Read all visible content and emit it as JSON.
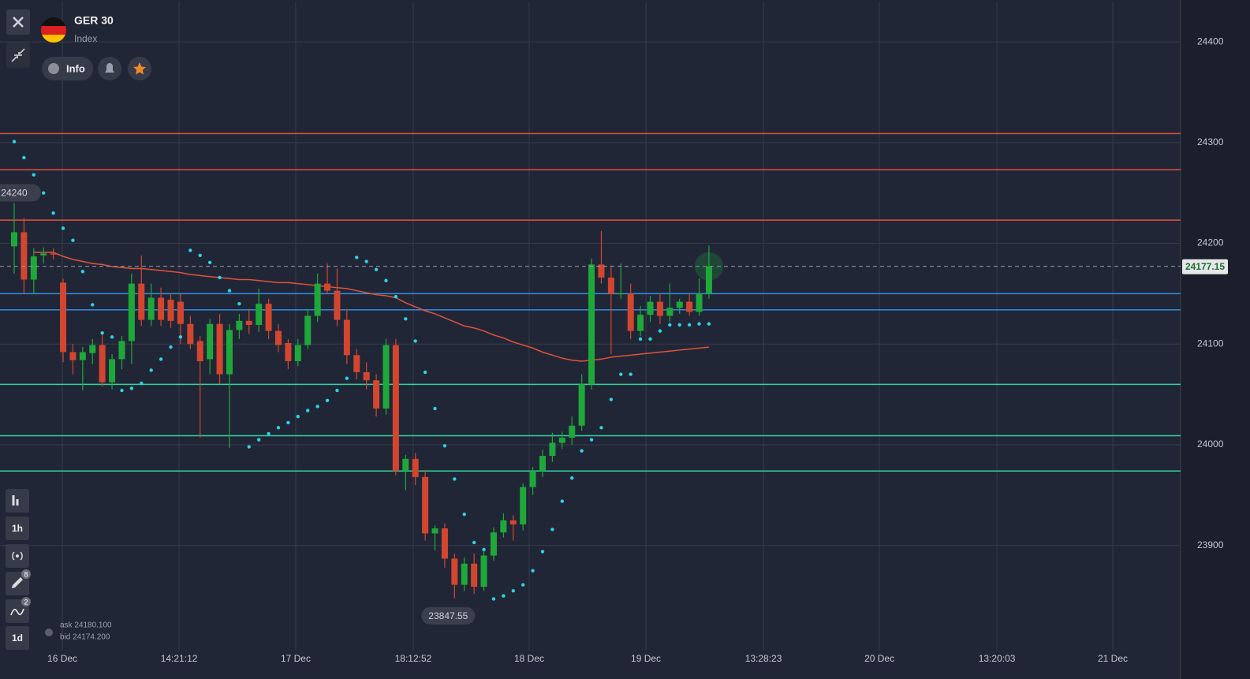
{
  "ui": {
    "symbol": "GER 30",
    "kind": "Index",
    "info": "Info",
    "tools": [
      "1h",
      "1d"
    ],
    "badges": [
      "8",
      "2"
    ],
    "ask": "ask 24180.100",
    "bid": "bid 24174.200"
  },
  "chart_data": {
    "type": "candlestick",
    "categories": [
      null,
      null,
      null,
      null,
      null,
      null,
      null,
      null,
      null,
      null,
      null,
      null,
      null,
      null,
      null,
      null,
      null,
      null,
      null,
      null,
      null,
      null,
      null,
      null,
      null,
      null,
      null,
      null,
      null,
      null,
      null,
      null,
      null,
      null,
      null,
      null,
      null,
      null,
      null,
      null,
      null,
      null,
      null,
      null,
      null,
      null,
      null,
      null,
      null,
      null,
      null,
      null,
      null,
      null,
      null,
      null,
      null,
      null,
      null,
      null,
      null,
      null,
      null,
      null,
      null,
      null,
      null,
      null,
      null,
      null,
      null,
      null
    ],
    "open": [
      24197,
      24211,
      24164,
      24188,
      24190,
      24161,
      24092,
      24084,
      24091,
      24099,
      24062,
      24085,
      24103,
      24160,
      24124,
      24146,
      24144,
      24142,
      24120,
      24103,
      24085,
      24120,
      24070,
      24114,
      24123,
      24119,
      24140,
      24113,
      24101,
      24083,
      24099,
      24128,
      24160,
      24153,
      24124,
      24089,
      24072,
      24064,
      24036,
      24099,
      23974,
      23986,
      23968,
      23912,
      23917,
      23887,
      23861,
      23882,
      23859,
      23890,
      23913,
      23925,
      23921,
      23958,
      23974,
      23989,
      24002,
      24007,
      24019,
      24060,
      24179,
      24166,
      24150,
      24150,
      24113,
      24129,
      24142,
      24128,
      24136,
      24142,
      24132,
      24150
    ],
    "high": [
      24240,
      24225,
      24195,
      24196,
      24195,
      24165,
      24100,
      24097,
      24105,
      24110,
      24090,
      24108,
      24170,
      24188,
      24160,
      24156,
      24150,
      24150,
      24128,
      24108,
      24125,
      24130,
      24120,
      24130,
      24135,
      24155,
      24145,
      24120,
      24105,
      24105,
      24135,
      24170,
      24180,
      24175,
      24135,
      24095,
      24082,
      24070,
      24105,
      24105,
      23990,
      23992,
      23975,
      23920,
      23922,
      23892,
      23888,
      23892,
      23895,
      23918,
      23932,
      23930,
      23962,
      23978,
      23995,
      24012,
      24013,
      24028,
      24070,
      24185,
      24212.25,
      24178,
      24180,
      24160,
      24138,
      24148,
      24150,
      24160,
      24145,
      24150,
      24165,
      24198
    ],
    "low": [
      24170,
      24150,
      24150,
      24180,
      24184,
      24082,
      24070,
      24054,
      24080,
      24058,
      24055,
      24075,
      24080,
      24118,
      24118,
      24118,
      24116,
      24100,
      24095,
      24007,
      24070,
      24060,
      23997,
      24105,
      24110,
      24112,
      24105,
      24092,
      24075,
      24078,
      24095,
      24122,
      24150,
      24118,
      24080,
      24065,
      24055,
      24028,
      24030,
      23970,
      23955,
      23960,
      23905,
      23895,
      23878,
      23847.55,
      23855,
      23852,
      23855,
      23885,
      23908,
      23905,
      23915,
      23950,
      23968,
      23983,
      23996,
      24000,
      24014,
      24055,
      24160,
      24090,
      24145,
      24105,
      24108,
      24122,
      24120,
      24122,
      24130,
      24128,
      24128,
      24145
    ],
    "close": [
      24211,
      24164,
      24187,
      24190,
      24189,
      24092,
      24084,
      24092,
      24099,
      24062,
      24085,
      24103,
      24160,
      24124,
      24146,
      24124,
      24123,
      24120,
      24100,
      24083,
      24120,
      24070,
      24114,
      24123,
      24119,
      24140,
      24113,
      24099,
      24083,
      24099,
      24128,
      24160,
      24153,
      24124,
      24089,
      24072,
      24064,
      24036,
      24099,
      23974,
      23986,
      23968,
      23912,
      23917,
      23887,
      23861,
      23882,
      23859,
      23890,
      23913,
      23925,
      23921,
      23958,
      23974,
      23989,
      24002,
      24007,
      24019,
      24060,
      24179,
      24166,
      24150,
      24150.5,
      24113,
      24129,
      24142,
      24128,
      24136,
      24142,
      24132,
      24150,
      24177.15
    ],
    "ma": [
      null,
      null,
      24191,
      24191,
      24191,
      24187,
      24184,
      24182,
      24180,
      24179,
      24177,
      24176,
      24175,
      24175,
      24174,
      24173,
      24172,
      24171,
      24169,
      24168,
      24167,
      24166,
      24165,
      24164,
      24164,
      24163,
      24162,
      24161,
      24161,
      24160,
      24159,
      24158,
      24157,
      24156,
      24155,
      24153,
      24151,
      24149,
      24148,
      24146,
      24141,
      24137,
      24133,
      24130,
      24126,
      24122,
      24118,
      24116,
      24113,
      24109,
      24106,
      24102,
      24099,
      24096,
      24092,
      24089,
      24086,
      24084,
      24083,
      24084,
      24085,
      24087,
      24088,
      24089,
      24090,
      24091,
      24092,
      24093,
      24094,
      24095,
      24096,
      24097
    ],
    "sar": [
      24301,
      24285,
      24268,
      24250,
      24230,
      24215,
      24203,
      24172,
      24139,
      24111,
      24107,
      24054,
      24056,
      24061,
      24074,
      24085,
      24097,
      24107,
      24193,
      24188,
      24181,
      24166,
      24153,
      24140,
      23998,
      24005,
      24011,
      24017,
      24022,
      24028,
      24034,
      24038,
      24044,
      24054,
      24066,
      24186,
      24182,
      24174,
      24163,
      24147,
      24125,
      24103,
      24072,
      24036,
      23999,
      23966,
      23931,
      23903,
      23896,
      23847,
      23850,
      23855,
      23861,
      23875,
      23894,
      23916,
      23944,
      23967,
      23994,
      24005,
      24017,
      24045,
      24070,
      24070,
      24105,
      24105,
      24113,
      24119,
      24119,
      24119,
      24120,
      24120
    ],
    "up_color": "#1fa83a",
    "down_color": "#d2462f",
    "ma_color": "#e0533b",
    "sar_color": "#2ad4e6",
    "levels": [
      {
        "value": 24309,
        "color": "#e0533b"
      },
      {
        "value": 24273,
        "color": "#e0533b"
      },
      {
        "value": 24223,
        "color": "#e0533b"
      },
      {
        "value": 24150,
        "color": "#2f8fe0"
      },
      {
        "value": 24134,
        "color": "#2f8fe0"
      },
      {
        "value": 24060,
        "color": "#2fd6a0"
      },
      {
        "value": 24009,
        "color": "#2fd6a0"
      },
      {
        "value": 23974,
        "color": "#2fd6a0"
      }
    ],
    "xlim": [
      -1.45,
      119.2
    ],
    "xticks": [
      {
        "value": 4.92,
        "label": "16 Dec"
      },
      {
        "value": 16.85,
        "label": "14:21:12"
      },
      {
        "value": 28.77,
        "label": "17 Dec"
      },
      {
        "value": 40.78,
        "label": "18:12:52"
      },
      {
        "value": 52.63,
        "label": "18 Dec"
      },
      {
        "value": 64.56,
        "label": "19 Dec"
      },
      {
        "value": 76.57,
        "label": "13:28:23"
      },
      {
        "value": 88.42,
        "label": "20 Dec"
      },
      {
        "value": 100.43,
        "label": "13:20:03"
      },
      {
        "value": 112.27,
        "label": "21 Dec"
      }
    ],
    "ylim": [
      23780,
      24440
    ],
    "yticks": [
      23900,
      24000,
      24100,
      24200,
      24300,
      24400
    ],
    "grid": true
  }
}
